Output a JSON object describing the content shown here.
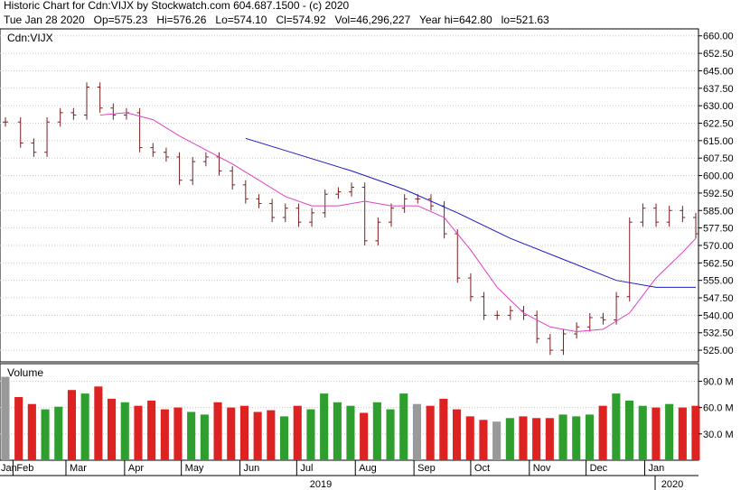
{
  "header": {
    "line1": "Historic Chart for Cdn:VIJX by Stockwatch.com 604.687.1500 - (c) 2020",
    "line2": "Tue Jan 28 2020   Op=575.23   Hi=576.26   Lo=574.10   Cl=574.92   Vol=46,296,227   Year hi=642.80   lo=521.63"
  },
  "colors": {
    "up": "#2e9e2e",
    "down": "#dd2222",
    "neutral": "#999999",
    "ma_short": "#e040c0",
    "ma_long": "#1a1ac8",
    "bar": "#7a1f1f"
  },
  "chart_data": [
    {
      "type": "ohlc",
      "title": "Cdn:VIJX",
      "ylim": [
        520,
        663
      ],
      "y_ticks": [
        "660.00",
        "652.50",
        "645.00",
        "637.50",
        "630.00",
        "622.50",
        "615.00",
        "607.50",
        "600.00",
        "592.50",
        "585.00",
        "577.50",
        "570.00",
        "562.50",
        "555.00",
        "547.50",
        "540.00",
        "532.50",
        "525.00"
      ],
      "x_labels": [
        "Jan",
        "Feb",
        "Mar",
        "Apr",
        "May",
        "Jun",
        "Jul",
        "Aug",
        "Sep",
        "Oct",
        "Nov",
        "Dec",
        "Jan"
      ],
      "year_labels": [
        "2019",
        "2020"
      ],
      "series": [
        {
          "name": "price",
          "points": [
            [
              "Jan 28",
              623
            ],
            [
              "Feb 5",
              614
            ],
            [
              "Feb 12",
              610
            ],
            [
              "Feb 19",
              623
            ],
            [
              "Feb 26",
              627
            ],
            [
              "Mar 5",
              626
            ],
            [
              "Mar 12",
              638
            ],
            [
              "Mar 19",
              629
            ],
            [
              "Mar 26",
              626
            ],
            [
              "Apr 2",
              627
            ],
            [
              "Apr 9",
              612
            ],
            [
              "Apr 16",
              610
            ],
            [
              "Apr 23",
              608
            ],
            [
              "Apr 30",
              598
            ],
            [
              "May 7",
              606
            ],
            [
              "May 14",
              608
            ],
            [
              "May 21",
              602
            ],
            [
              "May 28",
              596
            ],
            [
              "Jun 4",
              590
            ],
            [
              "Jun 11",
              588
            ],
            [
              "Jun 18",
              582
            ],
            [
              "Jun 25",
              586
            ],
            [
              "Jul 2",
              580
            ],
            [
              "Jul 9",
              584
            ],
            [
              "Jul 16",
              592
            ],
            [
              "Jul 23",
              593
            ],
            [
              "Jul 30",
              595
            ],
            [
              "Aug 6",
              572
            ],
            [
              "Aug 13",
              580
            ],
            [
              "Aug 20",
              586
            ],
            [
              "Aug 27",
              590
            ],
            [
              "Sep 3",
              590
            ],
            [
              "Sep 10",
              587
            ],
            [
              "Sep 17",
              575
            ],
            [
              "Sep 24",
              556
            ],
            [
              "Oct 1",
              548
            ],
            [
              "Oct 8",
              540
            ],
            [
              "Oct 15",
              540
            ],
            [
              "Oct 22",
              542
            ],
            [
              "Oct 29",
              540
            ],
            [
              "Nov 5",
              530
            ],
            [
              "Nov 12",
              525
            ],
            [
              "Nov 19",
              532
            ],
            [
              "Nov 26",
              535
            ],
            [
              "Dec 3",
              539
            ],
            [
              "Dec 10",
              538
            ],
            [
              "Dec 17",
              548
            ],
            [
              "Dec 24",
              580
            ],
            [
              "Dec 31",
              586
            ],
            [
              "Jan 7",
              580
            ],
            [
              "Jan 14",
              585
            ],
            [
              "Jan 21",
              582
            ],
            [
              "Jan 28",
              575
            ]
          ]
        },
        {
          "name": "short-ma",
          "points": [
            [
              "Mar 19",
              626
            ],
            [
              "Apr 2",
              627
            ],
            [
              "Apr 16",
              624
            ],
            [
              "Apr 30",
              617
            ],
            [
              "May 14",
              611
            ],
            [
              "May 28",
              605
            ],
            [
              "Jun 11",
              598
            ],
            [
              "Jun 25",
              591
            ],
            [
              "Jul 9",
              587
            ],
            [
              "Jul 23",
              587
            ],
            [
              "Aug 6",
              589
            ],
            [
              "Aug 20",
              587
            ],
            [
              "Sep 3",
              587
            ],
            [
              "Sep 17",
              582
            ],
            [
              "Oct 1",
              568
            ],
            [
              "Oct 15",
              552
            ],
            [
              "Oct 29",
              541
            ],
            [
              "Nov 12",
              535
            ],
            [
              "Nov 26",
              533
            ],
            [
              "Dec 10",
              534
            ],
            [
              "Dec 24",
              541
            ],
            [
              "Jan 7",
              556
            ],
            [
              "Jan 21",
              567
            ],
            [
              "Jan 28",
              573
            ]
          ]
        },
        {
          "name": "long-ma",
          "points": [
            [
              "Jun 4",
              616
            ],
            [
              "Jul 2",
              609
            ],
            [
              "Jul 30",
              602
            ],
            [
              "Aug 27",
              594
            ],
            [
              "Sep 24",
              584
            ],
            [
              "Oct 22",
              573
            ],
            [
              "Nov 19",
              564
            ],
            [
              "Dec 17",
              555
            ],
            [
              "Jan 7",
              552
            ],
            [
              "Jan 28",
              552
            ]
          ]
        }
      ]
    },
    {
      "type": "bar",
      "title": "Volume",
      "ylim": [
        0,
        110
      ],
      "y_ticks": [
        "90.0 M",
        "60.0 M",
        "30.0 M"
      ],
      "series": [
        {
          "name": "Volume",
          "values": [
            95,
            72,
            64,
            58,
            61,
            80,
            76,
            84,
            70,
            66,
            62,
            68,
            58,
            60,
            55,
            52,
            66,
            60,
            62,
            55,
            57,
            50,
            62,
            58,
            76,
            66,
            62,
            54,
            66,
            58,
            76,
            64,
            62,
            70,
            58,
            50,
            46,
            44,
            48,
            50,
            48,
            48,
            52,
            50,
            52,
            62,
            76,
            68,
            62,
            60,
            64,
            60,
            62
          ]
        }
      ]
    }
  ]
}
